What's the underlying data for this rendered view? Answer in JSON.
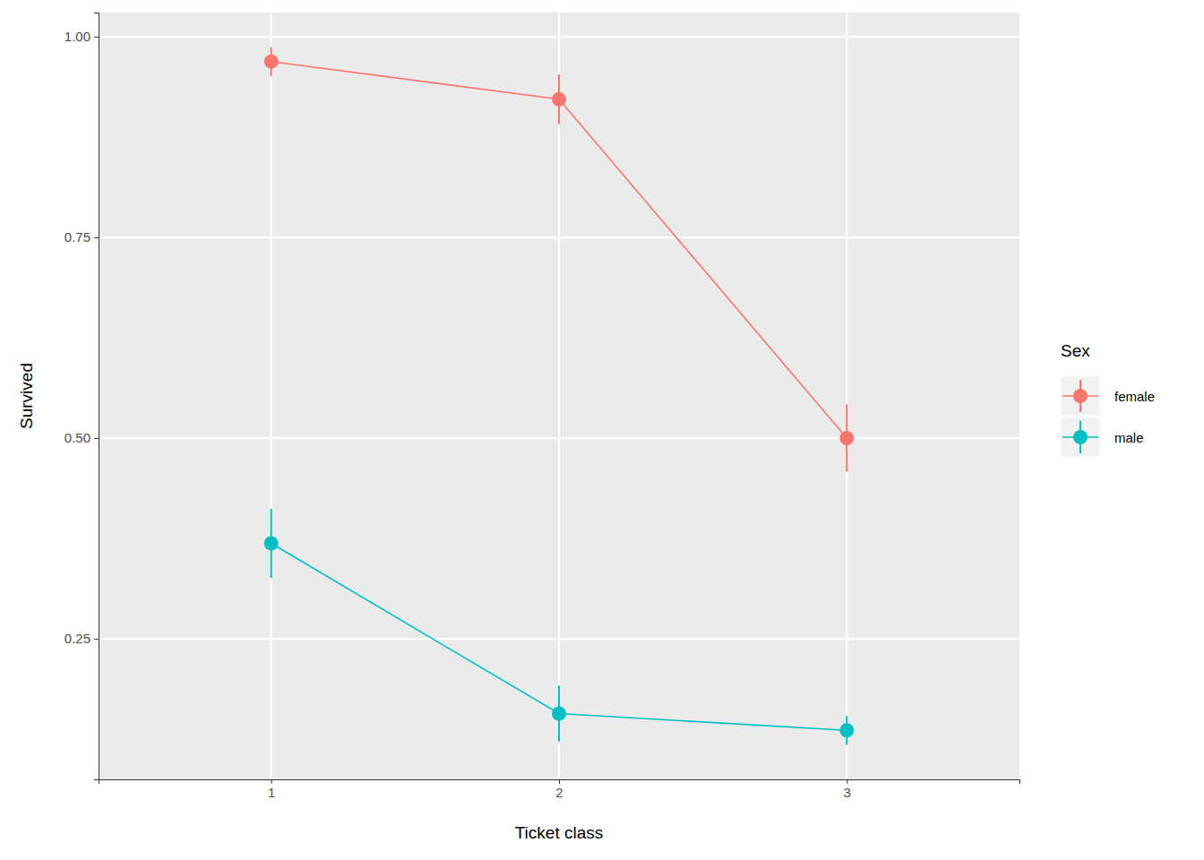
{
  "chart_data": {
    "type": "line",
    "x_label": "Ticket class",
    "y_label": "Survived",
    "categories": [
      "1",
      "2",
      "3"
    ],
    "series": [
      {
        "name": "female",
        "color": "#F8766D",
        "values": [
          0.969,
          0.922,
          0.5
        ],
        "errors": [
          0.018,
          0.031,
          0.042
        ]
      },
      {
        "name": "male",
        "color": "#00BFC4",
        "values": [
          0.369,
          0.157,
          0.136
        ],
        "errors": [
          0.043,
          0.035,
          0.018
        ]
      }
    ],
    "legend_title": "Sex",
    "legend": "right",
    "marker": "circle",
    "grid": true,
    "ylim": [
      0.075,
      1.03
    ],
    "yticks": [
      {
        "value": 0.25,
        "label": "0.25"
      },
      {
        "value": 0.5,
        "label": "0.50"
      },
      {
        "value": 0.75,
        "label": "0.75"
      },
      {
        "value": 1,
        "label": "1.00"
      }
    ]
  }
}
